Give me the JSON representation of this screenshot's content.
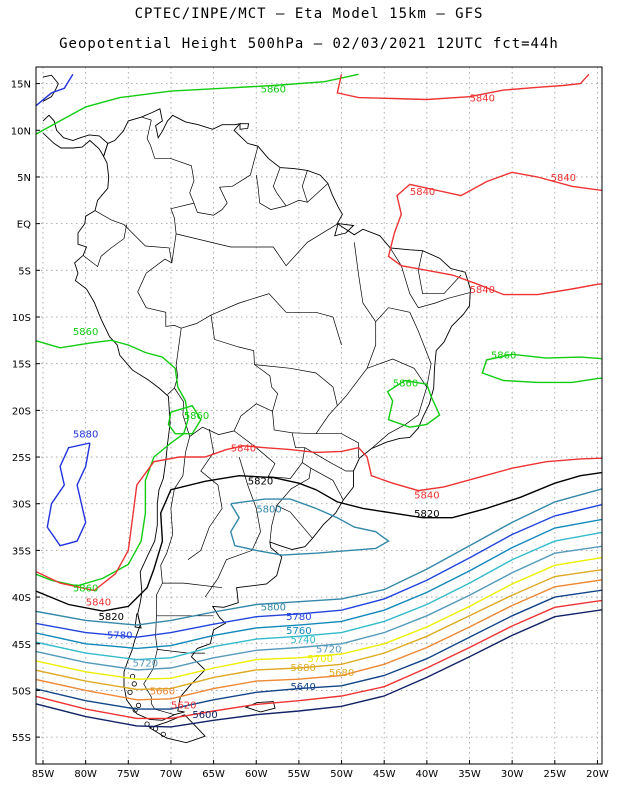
{
  "header": {
    "line1": "CPTEC/INPE/MCT –  Eta Model 15km – GFS",
    "line2": "Geopotential Height 500hPa – 02/03/2021 12UTC fct=44h"
  },
  "axes": {
    "lat_labels": [
      "15N",
      "10N",
      "5N",
      "EQ",
      "5S",
      "10S",
      "15S",
      "20S",
      "25S",
      "30S",
      "35S",
      "40S",
      "45S",
      "50S",
      "55S"
    ],
    "lon_labels": [
      "85W",
      "80W",
      "75W",
      "70W",
      "65W",
      "60W",
      "55W",
      "50W",
      "45W",
      "40W",
      "35W",
      "30W",
      "25W",
      "20W"
    ]
  },
  "colors": {
    "c5880": "#2233dd",
    "c5860": "#11cc11",
    "c5840": "#ee3333",
    "c5820": "#000000",
    "c5800": "#3388aa",
    "c5780": "#2244dd",
    "c5760": "#1188bb",
    "c5740": "#33bbcc",
    "c5720": "#5599bb",
    "c5700": "#eeee00",
    "c5680": "#ddaa22",
    "c5660": "#ee8833",
    "c5640": "#114488",
    "c5620": "#ee3333",
    "c5600": "#112266"
  },
  "contour_labels": [
    {
      "id": "lbl-5860-north",
      "text": "5860",
      "color": "c5860",
      "lon": -58,
      "lat": 14.5
    },
    {
      "id": "lbl-5840-ne",
      "text": "5840",
      "color": "c5840",
      "lon": -33.5,
      "lat": 13.5
    },
    {
      "id": "lbl-5840-east",
      "text": "5840",
      "color": "c5840",
      "lon": -24,
      "lat": 5
    },
    {
      "id": "lbl-5840-mid",
      "text": "5840",
      "color": "c5840",
      "lon": -40.5,
      "lat": 3.5
    },
    {
      "id": "lbl-5840-coast",
      "text": "5840",
      "color": "c5840",
      "lon": -33.5,
      "lat": -7
    },
    {
      "id": "lbl-5860-bolivia",
      "text": "5860",
      "color": "c5860",
      "lon": -80,
      "lat": -11.5
    },
    {
      "id": "lbl-5860-se",
      "text": "5860",
      "color": "c5860",
      "lon": -31,
      "lat": -14
    },
    {
      "id": "lbl-5860-brazil",
      "text": "5860",
      "color": "c5860",
      "lon": -42.5,
      "lat": -17
    },
    {
      "id": "lbl-5860-chile",
      "text": "5860",
      "color": "c5860",
      "lon": -67,
      "lat": -20.5
    },
    {
      "id": "lbl-5880-pacific",
      "text": "5880",
      "color": "c5880",
      "lon": -80,
      "lat": -22.5
    },
    {
      "id": "lbl-5840-arg",
      "text": "5840",
      "color": "c5840",
      "lon": -61.5,
      "lat": -24
    },
    {
      "id": "lbl-5820-arg",
      "text": "5820",
      "color": "c5820",
      "lon": -59.5,
      "lat": -27.5
    },
    {
      "id": "lbl-5840-atl",
      "text": "5840",
      "color": "c5840",
      "lon": -40,
      "lat": -29
    },
    {
      "id": "lbl-5820-atl",
      "text": "5820",
      "color": "c5820",
      "lon": -40,
      "lat": -31
    },
    {
      "id": "lbl-5800-low",
      "text": "5800",
      "color": "c5800",
      "lon": -58.5,
      "lat": -30.5
    },
    {
      "id": "lbl-5860-sw",
      "text": "5860",
      "color": "c5860",
      "lon": -80,
      "lat": -39
    },
    {
      "id": "lbl-5840-sw",
      "text": "5840",
      "color": "c5840",
      "lon": -78.5,
      "lat": -40.5
    },
    {
      "id": "lbl-5820-sw",
      "text": "5820",
      "color": "c5820",
      "lon": -77,
      "lat": -42
    },
    {
      "id": "lbl-5800-s",
      "text": "5800",
      "color": "c5800",
      "lon": -58,
      "lat": -41
    },
    {
      "id": "lbl-5780",
      "text": "5780",
      "color": "c5780",
      "lon": -55,
      "lat": -42
    },
    {
      "id": "lbl-5780-w",
      "text": "5780",
      "color": "c5780",
      "lon": -76,
      "lat": -44
    },
    {
      "id": "lbl-5760",
      "text": "5760",
      "color": "c5760",
      "lon": -55,
      "lat": -43.5
    },
    {
      "id": "lbl-5740",
      "text": "5740",
      "color": "c5740",
      "lon": -54.5,
      "lat": -44.5
    },
    {
      "id": "lbl-5720",
      "text": "5720",
      "color": "c5720",
      "lon": -51.5,
      "lat": -45.5
    },
    {
      "id": "lbl-5720-w",
      "text": "5720",
      "color": "c5720",
      "lon": -73,
      "lat": -47
    },
    {
      "id": "lbl-5700",
      "text": "5700",
      "color": "c5700",
      "lon": -52.5,
      "lat": -46.5
    },
    {
      "id": "lbl-5680",
      "text": "5680",
      "color": "c5680",
      "lon": -54.5,
      "lat": -47.5
    },
    {
      "id": "lbl-5680-b",
      "text": "5680",
      "color": "c5680",
      "lon": -50,
      "lat": -48
    },
    {
      "id": "lbl-5660",
      "text": "5660",
      "color": "c5660",
      "lon": -71,
      "lat": -50
    },
    {
      "id": "lbl-5640",
      "text": "5640",
      "color": "c5640",
      "lon": -54.5,
      "lat": -49.5
    },
    {
      "id": "lbl-5620",
      "text": "5620",
      "color": "c5620",
      "lon": -68.5,
      "lat": -51.5
    },
    {
      "id": "lbl-5600",
      "text": "5600",
      "color": "c5600",
      "lon": -66,
      "lat": -52.5
    }
  ]
}
